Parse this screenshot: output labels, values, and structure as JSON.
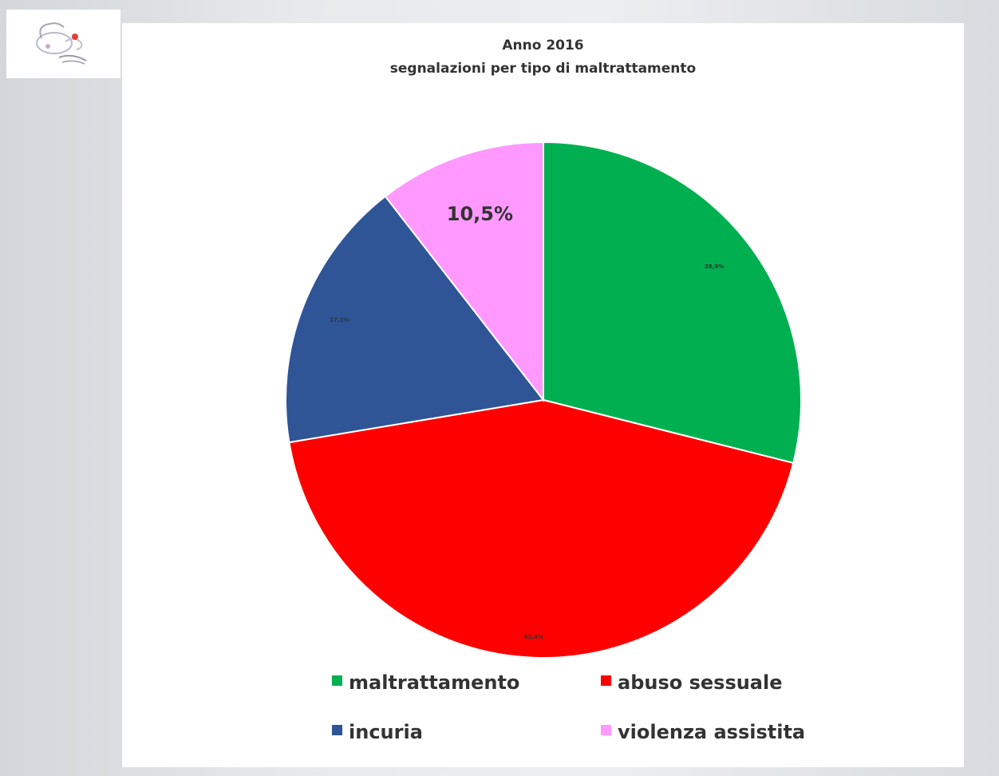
{
  "colors": {
    "maltrattamento": "#00b050",
    "abuso_sessuale": "#ff0000",
    "incuria": "#2f5597",
    "violenza_assistita": "#ff99ff"
  },
  "logo": {
    "icon": "sheep-logo-icon"
  },
  "chart_data": {
    "type": "pie",
    "title": "Anno 2016",
    "subtitle": "segnalazioni per tipo di maltrattamento",
    "categories": [
      "maltrattamento",
      "abuso sessuale",
      "incuria",
      "violenza assistita"
    ],
    "values": [
      28.9,
      43.4,
      17.1,
      10.5
    ],
    "data_labels": [
      "28,9%",
      "43,4%",
      "17,1%",
      "10,5%"
    ],
    "colors": [
      "#00b050",
      "#ff0000",
      "#2f5597",
      "#ff99ff"
    ],
    "start_angle": "12 o'clock",
    "direction": "clockwise",
    "legend": "bottom"
  }
}
